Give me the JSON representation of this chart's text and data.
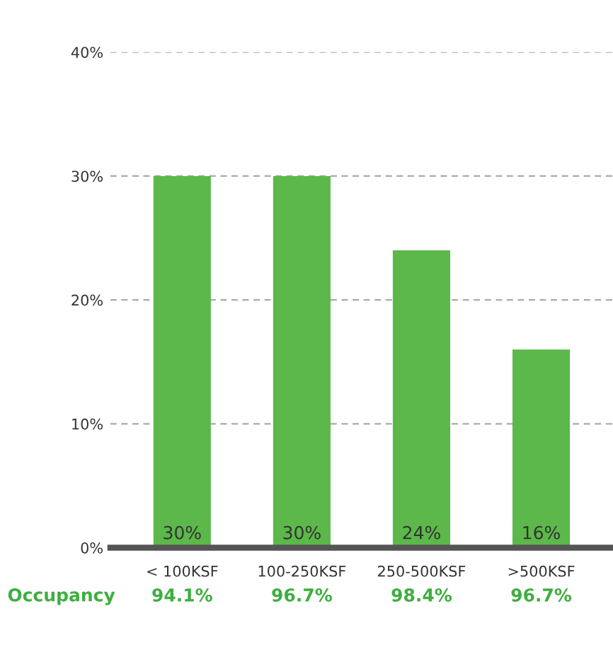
{
  "chart_data": {
    "type": "bar",
    "categories": [
      "< 100KSF",
      "100-250KSF",
      "250-500KSF",
      ">500KSF"
    ],
    "values": [
      30,
      30,
      24,
      16
    ],
    "color": "#5cb84a",
    "value_labels": [
      "30%",
      "30%",
      "24%",
      "16%"
    ],
    "ylim": [
      0,
      40
    ],
    "yticks": [
      {
        "value": 0,
        "label": "0%"
      },
      {
        "value": 10,
        "label": "10%"
      },
      {
        "value": 20,
        "label": "20%"
      },
      {
        "value": 30,
        "label": "30%"
      },
      {
        "value": 40,
        "label": "40%"
      }
    ],
    "grid": "y",
    "annotations": [
      "Occupancy",
      "94.1%",
      "96.7%",
      "98.4%",
      "96.7%"
    ]
  }
}
